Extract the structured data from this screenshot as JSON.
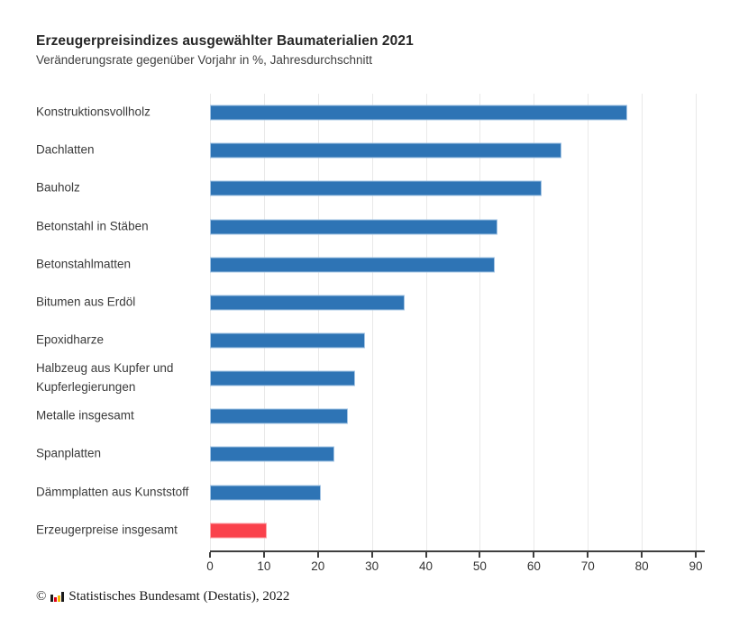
{
  "chart_data": {
    "type": "bar",
    "orientation": "horizontal",
    "title": "Erzeugerpreisindizes ausgewählter Baumaterialien 2021",
    "subtitle": "Veränderungsrate gegenüber Vorjahr in %, Jahresdurchschnitt",
    "categories": [
      "Konstruktionsvollholz",
      "Dachlatten",
      "Bauholz",
      "Betonstahl in Stäben",
      "Betonstahlmatten",
      "Bitumen aus Erdöl",
      "Epoxidharze",
      "Halbzeug aus Kupfer und Kupferlegierungen",
      "Metalle insgesamt",
      "Spanplatten",
      "Dämmplatten aus Kunststoff",
      "Erzeugerpreise insgesamt"
    ],
    "values": [
      77.3,
      65.1,
      61.4,
      53.2,
      52.8,
      36.1,
      28.8,
      26.8,
      25.5,
      23.0,
      20.6,
      10.5
    ],
    "unit": "%",
    "highlight_index": 11,
    "bar_color": "#2e74b5",
    "bar_edge_color": "#a3c4e4",
    "highlight_color": "#fa414b",
    "highlight_edge_color": "#fca4a8",
    "xlim": [
      0,
      90
    ],
    "xticks": [
      0,
      10,
      20,
      30,
      40,
      50,
      60,
      70,
      80,
      90
    ],
    "grid": "vertical",
    "legend": "none"
  },
  "footer": {
    "copyright_symbol": "©",
    "text": "Statistisches Bundesamt (Destatis), 2022",
    "logo": "destatis-bars-icon",
    "logo_colors": [
      "#1a1a1a",
      "#e2001a",
      "#f5b800",
      "#1a1a1a"
    ]
  }
}
